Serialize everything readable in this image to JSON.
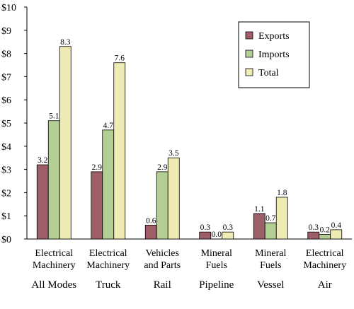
{
  "chart_data": {
    "type": "bar",
    "title": "",
    "xlabel": "",
    "ylabel": "",
    "ylim": [
      0,
      10
    ],
    "yticks": [
      "$0",
      "$1",
      "$2",
      "$3",
      "$4",
      "$5",
      "$6",
      "$7",
      "$8",
      "$9",
      "$10"
    ],
    "grid": false,
    "legend_position": "top-right",
    "categories": [
      {
        "commodity": [
          "Electrical",
          "Machinery"
        ],
        "mode": "All Modes"
      },
      {
        "commodity": [
          "Electrical",
          "Machinery"
        ],
        "mode": "Truck"
      },
      {
        "commodity": [
          "Vehicles",
          "and Parts"
        ],
        "mode": "Rail"
      },
      {
        "commodity": [
          "Mineral",
          "Fuels"
        ],
        "mode": "Pipeline"
      },
      {
        "commodity": [
          "Mineral",
          "Fuels"
        ],
        "mode": "Vessel"
      },
      {
        "commodity": [
          "Electrical",
          "Machinery"
        ],
        "mode": "Air"
      }
    ],
    "series": [
      {
        "name": "Exports",
        "color": "#9e5e68",
        "values": [
          3.2,
          2.9,
          0.6,
          0.3,
          1.1,
          0.3
        ]
      },
      {
        "name": "Imports",
        "color": "#b3cf94",
        "values": [
          5.1,
          4.7,
          2.9,
          0.0,
          0.7,
          0.2
        ]
      },
      {
        "name": "Total",
        "color": "#eeebb4",
        "values": [
          8.3,
          7.6,
          3.5,
          0.3,
          1.8,
          0.4
        ]
      }
    ]
  }
}
